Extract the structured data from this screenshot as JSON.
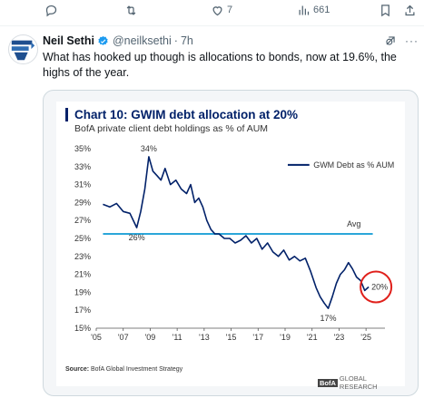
{
  "actions": {
    "reply": {
      "icon": "reply-icon",
      "count": ""
    },
    "retweet": {
      "icon": "retweet-icon",
      "count": ""
    },
    "like": {
      "icon": "heart-icon",
      "count": "7"
    },
    "views": {
      "icon": "views-icon",
      "count": "661"
    },
    "bookmark": {
      "icon": "bookmark-icon"
    },
    "share": {
      "icon": "share-icon"
    }
  },
  "tweet": {
    "name": "Neil Sethi",
    "handle": "@neilksethi",
    "separator": "·",
    "time": "7h",
    "text": "What has hooked up though is allocations to bonds, now at 19.6%, the highs of the year."
  },
  "chart_data": {
    "type": "line",
    "title": "Chart 10: GWIM debt allocation at 20%",
    "subtitle": "BofA private client debt holdings as % of AUM",
    "series": [
      {
        "name": "GWM Debt as % AUM",
        "color": "#012169"
      }
    ],
    "x": [
      2005.5,
      2006,
      2006.5,
      2007,
      2007.5,
      2008,
      2008.3,
      2008.6,
      2008.9,
      2009.2,
      2009.5,
      2009.8,
      2010.1,
      2010.5,
      2010.9,
      2011.3,
      2011.7,
      2012,
      2012.3,
      2012.6,
      2012.9,
      2013.2,
      2013.5,
      2013.8,
      2014.1,
      2014.5,
      2014.9,
      2015.3,
      2015.7,
      2016.1,
      2016.5,
      2016.9,
      2017.3,
      2017.7,
      2018.1,
      2018.5,
      2018.9,
      2019.3,
      2019.7,
      2020.1,
      2020.5,
      2020.9,
      2021.3,
      2021.6,
      2021.9,
      2022.2,
      2022.5,
      2022.8,
      2023.1,
      2023.4,
      2023.7,
      2024,
      2024.3,
      2024.6,
      2024.9,
      2025.2
    ],
    "y": [
      28.8,
      28.5,
      28.9,
      28.0,
      27.8,
      26.2,
      28.0,
      30.5,
      34.1,
      32.5,
      32.0,
      31.5,
      32.8,
      31.0,
      31.5,
      30.5,
      30.0,
      31.0,
      29.0,
      29.5,
      28.5,
      27.0,
      26.0,
      25.5,
      25.5,
      25.0,
      25.0,
      24.5,
      24.8,
      25.3,
      24.5,
      25.0,
      23.8,
      24.5,
      23.5,
      23.0,
      23.7,
      22.6,
      23.0,
      22.5,
      22.8,
      21.3,
      19.5,
      18.5,
      17.8,
      17.2,
      18.5,
      20.0,
      21.0,
      21.5,
      22.3,
      21.6,
      20.7,
      20.3,
      19.2,
      19.6
    ],
    "avg": 25.5,
    "avg_label": "Avg",
    "xlim": [
      2005,
      2026
    ],
    "ylim": [
      15,
      35
    ],
    "yticks": [
      "35%",
      "33%",
      "31%",
      "29%",
      "27%",
      "25%",
      "23%",
      "21%",
      "19%",
      "17%",
      "15%"
    ],
    "ytick_values": [
      35,
      33,
      31,
      29,
      27,
      25,
      23,
      21,
      19,
      17,
      15
    ],
    "xticks": [
      "'05",
      "'07",
      "'09",
      "'11",
      "'13",
      "'15",
      "'17",
      "'19",
      "'21",
      "'23",
      "'25"
    ],
    "xtick_values": [
      2005,
      2007,
      2009,
      2011,
      2013,
      2015,
      2017,
      2019,
      2021,
      2023,
      2025
    ],
    "annotations": [
      {
        "text": "34%",
        "x": 2008.9,
        "y": 34.1,
        "pos": "above"
      },
      {
        "text": "26%",
        "x": 2008.0,
        "y": 26.2,
        "pos": "below"
      },
      {
        "text": "17%",
        "x": 2022.2,
        "y": 17.2,
        "pos": "below"
      },
      {
        "text": "20%",
        "x": 2025.2,
        "y": 19.6,
        "pos": "right"
      }
    ],
    "grid": false,
    "legend": "top-right",
    "highlight_color": "#e0201b",
    "avg_color": "#2ba6d9"
  },
  "source": {
    "label": "Source:",
    "text": "BofA Global Investment Strategy"
  },
  "brand": {
    "box": "BofA",
    "text": "GLOBAL RESEARCH"
  }
}
